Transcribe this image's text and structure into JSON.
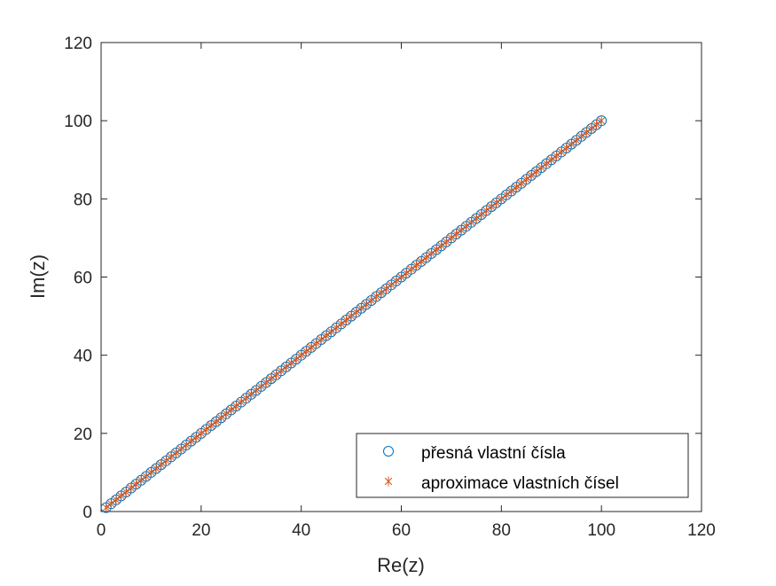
{
  "chart_data": {
    "type": "scatter",
    "title": "",
    "xlabel": "Re(z)",
    "ylabel": "Im(z)",
    "xlim": [
      0,
      120
    ],
    "ylim": [
      0,
      120
    ],
    "xticks": [
      0,
      20,
      40,
      60,
      80,
      100,
      120
    ],
    "yticks": [
      0,
      20,
      40,
      60,
      80,
      100,
      120
    ],
    "grid": false,
    "legend_position": "bottom-right",
    "series": [
      {
        "name": "přesná vlastní čísla",
        "marker": "circle",
        "color": "#0072BD",
        "x_range": [
          1,
          100
        ],
        "y_range": [
          1,
          100
        ],
        "step": 1,
        "relation": "y = x"
      },
      {
        "name": "aproximace vlastních čísel",
        "marker": "asterisk",
        "color": "#D95319",
        "x_range": [
          1,
          100
        ],
        "y_range": [
          1,
          100
        ],
        "step": 1,
        "relation": "y = x"
      }
    ]
  }
}
